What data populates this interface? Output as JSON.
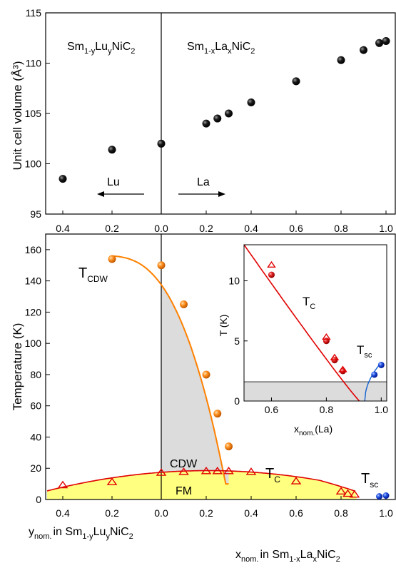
{
  "chart_data": [
    {
      "type": "scatter",
      "ylabel": "Unit cell volume (Å³)",
      "ylim": [
        95,
        115
      ],
      "yticks": [
        "95",
        "100",
        "105",
        "110",
        "115"
      ],
      "xticks_left": [
        "0.4",
        "0.2",
        "0.0"
      ],
      "xticks_right": [
        "0.2",
        "0.4",
        "0.6",
        "0.8",
        "1.0"
      ],
      "series": [
        {
          "points_lu": [
            [
              0.4,
              98.5
            ],
            [
              0.2,
              101.4
            ],
            [
              0.0,
              102.0
            ]
          ]
        },
        {
          "points_la": [
            [
              0.2,
              104.0
            ],
            [
              0.25,
              104.5
            ],
            [
              0.3,
              105.0
            ],
            [
              0.4,
              106.1
            ],
            [
              0.6,
              108.2
            ],
            [
              0.8,
              110.3
            ],
            [
              0.9,
              111.3
            ],
            [
              0.97,
              112.0
            ],
            [
              1.0,
              112.2
            ]
          ]
        }
      ],
      "annotations": {
        "left_compound": {
          "a": "Sm",
          "a_sub": "1-y",
          "b": "Lu",
          "b_sub": "y",
          "c": "NiC",
          "c_sub": "2"
        },
        "right_compound": {
          "a": "Sm",
          "a_sub": "1-x",
          "b": "La",
          "b_sub": "x",
          "c": "NiC",
          "c_sub": "2"
        },
        "lu_label": "Lu",
        "la_label": "La"
      }
    },
    {
      "type": "scatter",
      "ylabel": "Temperature (K)",
      "ylim": [
        0,
        170
      ],
      "yticks": [
        "0",
        "20",
        "40",
        "60",
        "80",
        "100",
        "120",
        "140",
        "160"
      ],
      "xticks_left": [
        "0.4",
        "0.2",
        "0.0"
      ],
      "xticks_right": [
        "0.2",
        "0.4",
        "0.6",
        "0.8",
        "1.0"
      ],
      "series": [
        {
          "points_cdw_lu": [
            [
              0.2,
              154
            ]
          ],
          "points_cdw_la": [
            [
              0.0,
              150
            ],
            [
              0.1,
              125
            ],
            [
              0.2,
              80
            ],
            [
              0.25,
              55
            ],
            [
              0.3,
              34
            ]
          ]
        },
        {
          "points_tc_lu": [
            [
              0.4,
              9
            ],
            [
              0.2,
              11
            ]
          ],
          "points_tc_la": [
            [
              0.0,
              17
            ],
            [
              0.1,
              17.5
            ],
            [
              0.2,
              18
            ],
            [
              0.25,
              18
            ],
            [
              0.3,
              18
            ],
            [
              0.4,
              17.5
            ],
            [
              0.6,
              11.5
            ],
            [
              0.8,
              5
            ],
            [
              0.83,
              3.5
            ],
            [
              0.86,
              3
            ]
          ]
        },
        {
          "points_sc": [
            [
              0.97,
              2
            ],
            [
              1.0,
              2.5
            ]
          ]
        }
      ],
      "annotations": {
        "tcdw": "T",
        "tcdw_sub": "CDW",
        "tc": "T",
        "tc_sub": "C",
        "tsc": "T",
        "tsc_sub": "sc",
        "cdw": "CDW",
        "fm": "FM"
      },
      "xlabel_left": {
        "a": "y",
        "a_sub": "nom.",
        "b": "in Sm",
        "b_sub": "1-y",
        "c": "Lu",
        "c_sub": "y",
        "d": "NiC",
        "d_sub": "2"
      },
      "xlabel_right": {
        "a": "x",
        "a_sub": "nom.",
        "b": "in Sm",
        "b_sub": "1-x",
        "c": "La",
        "c_sub": "x",
        "d": "NiC",
        "d_sub": "2"
      },
      "colors": {
        "cdw_line": "#ff8000",
        "tc_line": "#e00000",
        "sc_line": "#1060d0",
        "fm_fill": "#ffff80",
        "cdw_fill": "#dcdcdc"
      }
    },
    {
      "type": "scatter",
      "xlabel": {
        "a": "x",
        "a_sub": "nom.",
        "b": "(La)"
      },
      "ylabel": "T (K)",
      "xlim": [
        0.5,
        1.02
      ],
      "ylim": [
        0,
        13
      ],
      "xticks": [
        "0.6",
        "0.8",
        "1.0"
      ],
      "yticks": [
        "0",
        "5",
        "10"
      ],
      "series": [
        {
          "points_tc_dots": [
            [
              0.6,
              10.5
            ],
            [
              0.8,
              5.0
            ],
            [
              0.83,
              3.4
            ],
            [
              0.86,
              2.5
            ]
          ],
          "points_tc_tri": [
            [
              0.6,
              11.3
            ],
            [
              0.8,
              5.3
            ],
            [
              0.83,
              3.6
            ],
            [
              0.86,
              2.6
            ]
          ]
        },
        {
          "points_sc": [
            [
              0.975,
              2.2
            ],
            [
              1.0,
              3.0
            ]
          ]
        }
      ],
      "annotations": {
        "tc": "T",
        "tc_sub": "C",
        "tsc": "T",
        "tsc_sub": "sc"
      }
    }
  ]
}
